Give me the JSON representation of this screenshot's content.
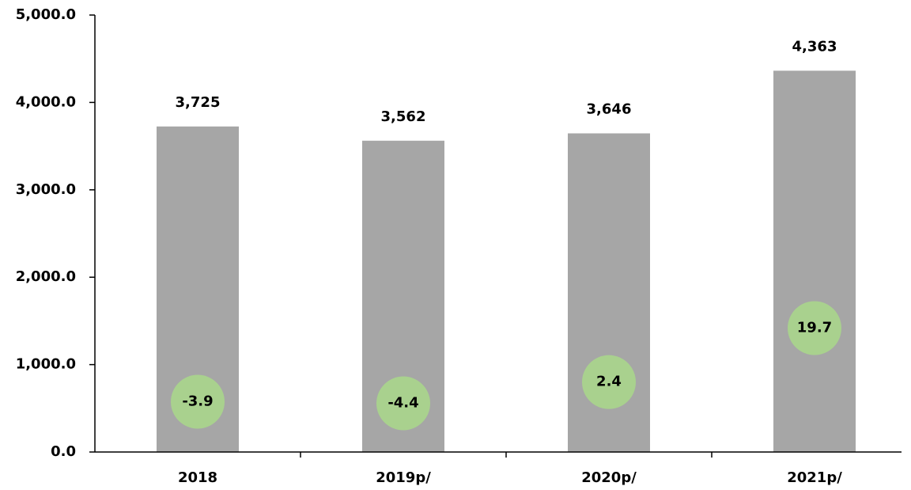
{
  "chart_data": {
    "type": "bar",
    "categories": [
      "2018",
      "2019p/",
      "2020p/",
      "2021p/"
    ],
    "series": [
      {
        "color": "#a6a6a6",
        "values": [
          3725,
          3562,
          3646,
          4363
        ],
        "value_labels": [
          "3,725",
          "3,562",
          "3,646",
          "4,363"
        ]
      },
      {
        "type": "scatter",
        "axis": "y2",
        "color": "#a9d18e",
        "values": [
          -3.9,
          -4.4,
          2.4,
          19.7
        ]
      }
    ],
    "ylim": [
      0,
      5000
    ],
    "yticks": [
      {
        "value": 0,
        "label": "0.0"
      },
      {
        "value": 1000,
        "label": "1,000.0"
      },
      {
        "value": 2000,
        "label": "2,000.0"
      },
      {
        "value": 3000,
        "label": "3,000.0"
      },
      {
        "value": 4000,
        "label": "4,000.0"
      },
      {
        "value": 5000,
        "label": "5,000.0"
      }
    ],
    "y2lim": [
      -20,
      120
    ],
    "grid": false
  }
}
